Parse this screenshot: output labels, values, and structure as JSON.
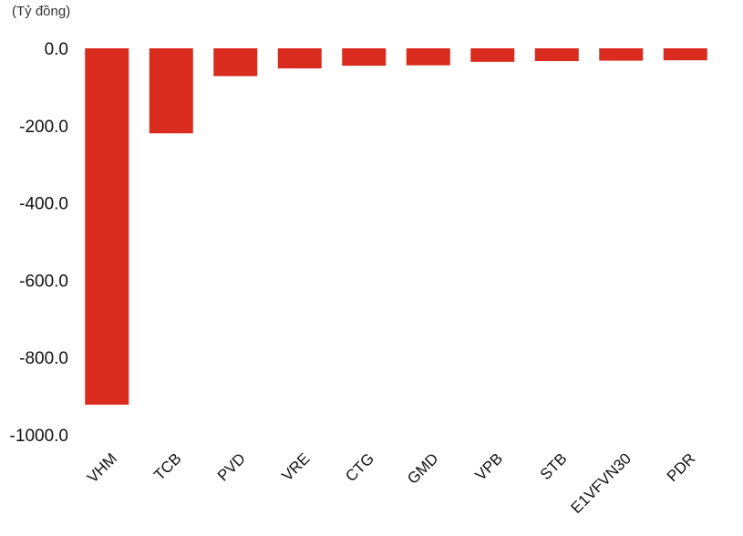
{
  "chart_data": {
    "type": "bar",
    "title": "",
    "unit_label": "(Tỷ đồng)",
    "xlabel": "",
    "ylabel": "",
    "categories": [
      "VHM",
      "TCB",
      "PVD",
      "VRE",
      "CTG",
      "GMD",
      "VPB",
      "STB",
      "E1VFVN30",
      "PDR"
    ],
    "values": [
      -922,
      -220,
      -72,
      -52,
      -45,
      -44,
      -35,
      -33,
      -32,
      -31
    ],
    "ylim": [
      -1000,
      0
    ],
    "yticks": [
      0,
      -200,
      -400,
      -600,
      -800,
      -1000
    ],
    "ytick_labels": [
      "0.0",
      "-200.0",
      "-400.0",
      "-600.0",
      "-800.0",
      "-1000.0"
    ],
    "grid": false,
    "bar_color": "#d92b1e"
  }
}
